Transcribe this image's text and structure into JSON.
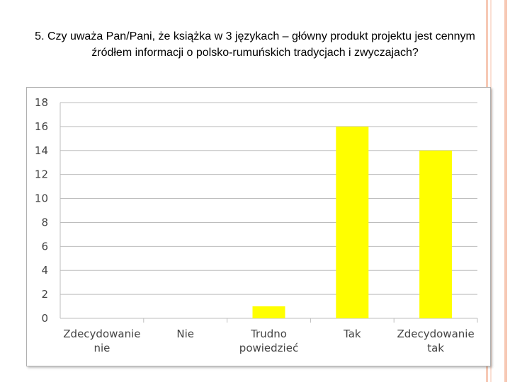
{
  "slide": {
    "title": "5. Czy uważa Pan/Pani, że książka w 3 językach – główny produkt projektu jest cennym źródłem informacji o polsko-rumuńskich tradycjach i zwyczajach?",
    "stripe_colors": [
      "#f7c9b5",
      "#fbe0d4"
    ]
  },
  "chart_data": {
    "type": "bar",
    "categories": [
      [
        "Zdecydowanie",
        "nie"
      ],
      [
        "Nie"
      ],
      [
        "Trudno",
        "powiedzieć"
      ],
      [
        "Tak"
      ],
      [
        "Zdecydowanie",
        "tak"
      ]
    ],
    "values": [
      0,
      0,
      1,
      16,
      14
    ],
    "ylim": [
      0,
      18
    ],
    "yticks": [
      0,
      2,
      4,
      6,
      8,
      10,
      12,
      14,
      16,
      18
    ],
    "bar_color": "#ffff00",
    "grid": "horizontal"
  }
}
